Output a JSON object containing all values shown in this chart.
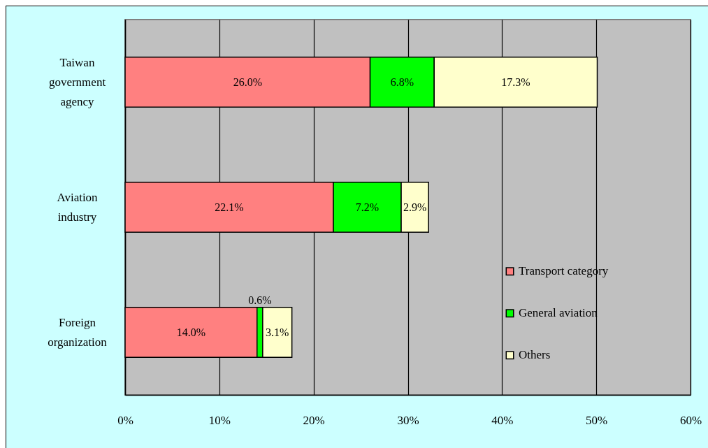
{
  "chart_data": {
    "type": "bar",
    "orientation": "horizontal",
    "stacked": true,
    "categories": [
      "Taiwan government agency",
      "Aviation industry",
      "Foreign organization"
    ],
    "series": [
      {
        "name": "Transport category",
        "color": "#ff8080",
        "values": [
          26.0,
          22.1,
          14.0
        ],
        "value_labels": [
          "26.0%",
          "22.1%",
          "14.0%"
        ]
      },
      {
        "name": "General aviation",
        "color": "#00ff00",
        "values": [
          6.8,
          7.2,
          0.6
        ],
        "value_labels": [
          "6.8%",
          "7.2%",
          "0.6%"
        ]
      },
      {
        "name": "Others",
        "color": "#ffffcc",
        "values": [
          17.3,
          2.9,
          3.1
        ],
        "value_labels": [
          "17.3%",
          "2.9%",
          "3.1%"
        ]
      }
    ],
    "xlim": [
      0,
      60
    ],
    "xticks": [
      {
        "value": 0,
        "label": "0%"
      },
      {
        "value": 10,
        "label": "10%"
      },
      {
        "value": 20,
        "label": "20%"
      },
      {
        "value": 30,
        "label": "30%"
      },
      {
        "value": 40,
        "label": "40%"
      },
      {
        "value": 50,
        "label": "50%"
      },
      {
        "value": 60,
        "label": "60%"
      }
    ],
    "grid": "x",
    "legend": "bottom right"
  }
}
